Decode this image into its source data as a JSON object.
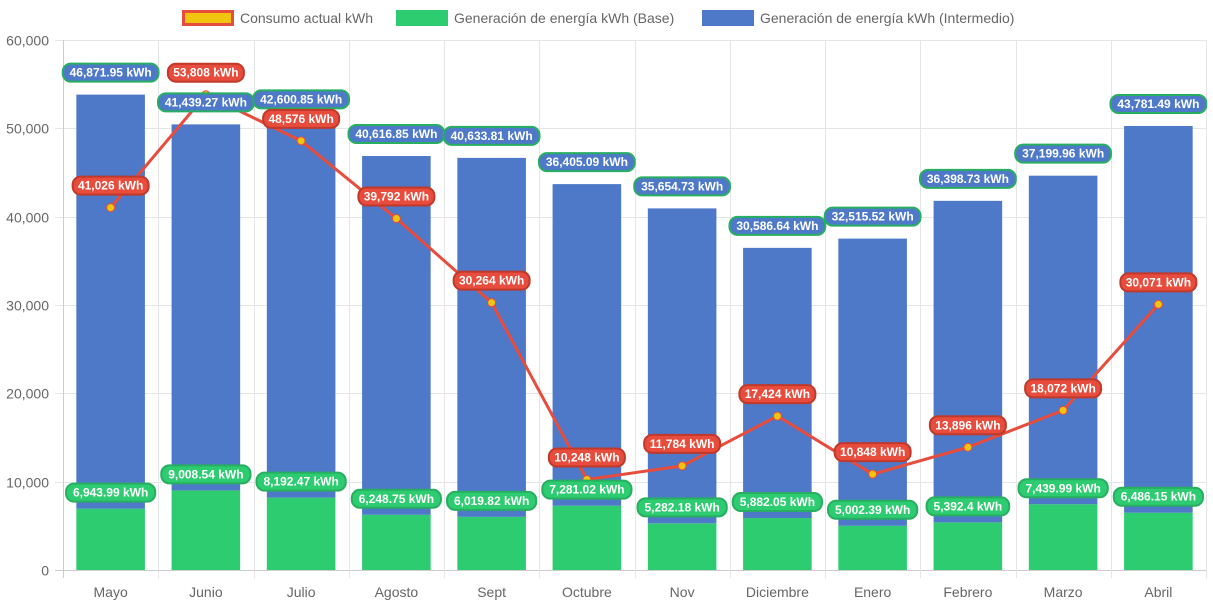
{
  "chart_data": {
    "type": "bar",
    "title": "",
    "xlabel": "",
    "ylabel": "",
    "ylim": [
      0,
      60000
    ],
    "yticks": [
      0,
      10000,
      20000,
      30000,
      40000,
      50000,
      60000
    ],
    "ytick_labels": [
      "0",
      "10,000",
      "20,000",
      "30,000",
      "40,000",
      "50,000",
      "60,000"
    ],
    "grid": true,
    "stacked": true,
    "legend_position": "top",
    "categories": [
      "Mayo",
      "Junio",
      "Julio",
      "Agosto",
      "Sept",
      "Octubre",
      "Nov",
      "Diciembre",
      "Enero",
      "Febrero",
      "Marzo",
      "Abril"
    ],
    "series": [
      {
        "name": "Consumo actual kWh",
        "type": "line",
        "color": "#e74c3c",
        "point_color": "#f1c40f",
        "values": [
          41026,
          53808,
          48576,
          39792,
          30264,
          10248,
          11784,
          17424,
          10848,
          13896,
          18072,
          30071
        ],
        "labels": [
          "41,026 kWh",
          "53,808 kWh",
          "48,576 kWh",
          "39,792 kWh",
          "30,264 kWh",
          "10,248 kWh",
          "11,784 kWh",
          "17,424 kWh",
          "10,848 kWh",
          "13,896 kWh",
          "18,072 kWh",
          "30,071 kWh"
        ]
      },
      {
        "name": "Generación de energía kWh (Base)",
        "type": "bar",
        "color": "#2ecc71",
        "values": [
          6943.99,
          9008.54,
          8192.47,
          6248.75,
          6019.82,
          7281.02,
          5282.18,
          5882.05,
          5002.39,
          5392.4,
          7439.99,
          6486.15
        ],
        "labels": [
          "6,943.99 kWh",
          "9,008.54 kWh",
          "8,192.47 kWh",
          "6,248.75 kWh",
          "6,019.82 kWh",
          "7,281.02 kWh",
          "5,282.18 kWh",
          "5,882.05 kWh",
          "5,002.39 kWh",
          "5,392.4 kWh",
          "7,439.99 kWh",
          "6,486.15 kWh"
        ]
      },
      {
        "name": "Generación de energía kWh (Intermedio)",
        "type": "bar",
        "color": "#4e79c9",
        "values": [
          46871.95,
          41439.27,
          42600.85,
          40616.85,
          40633.81,
          36405.09,
          35654.73,
          30586.64,
          32515.52,
          36398.73,
          37199.96,
          43781.49
        ],
        "labels": [
          "46,871.95 kWh",
          "41,439.27 kWh",
          "42,600.85 kWh",
          "40,616.85 kWh",
          "40,633.81 kWh",
          "36,405.09 kWh",
          "35,654.73 kWh",
          "30,586.64 kWh",
          "32,515.52 kWh",
          "36,398.73 kWh",
          "37,199.96 kWh",
          "43,781.49 kWh"
        ]
      }
    ]
  },
  "legend": {
    "items": [
      {
        "label": "Consumo actual kWh",
        "fill": "#f1c40f",
        "stroke": "#e74c3c"
      },
      {
        "label": "Generación de energía kWh (Base)",
        "fill": "#2ecc71",
        "stroke": "#2ecc71"
      },
      {
        "label": "Generación de energía kWh (Intermedio)",
        "fill": "#4e79c9",
        "stroke": "#4e79c9"
      }
    ]
  },
  "label_style": {
    "line_bg": "#e74c3c",
    "line_border": "#c0392b",
    "base_bg": "#2ecc71",
    "base_border": "#27ae60",
    "inter_bg": "#4e79c9",
    "inter_border": "#27ae60"
  }
}
